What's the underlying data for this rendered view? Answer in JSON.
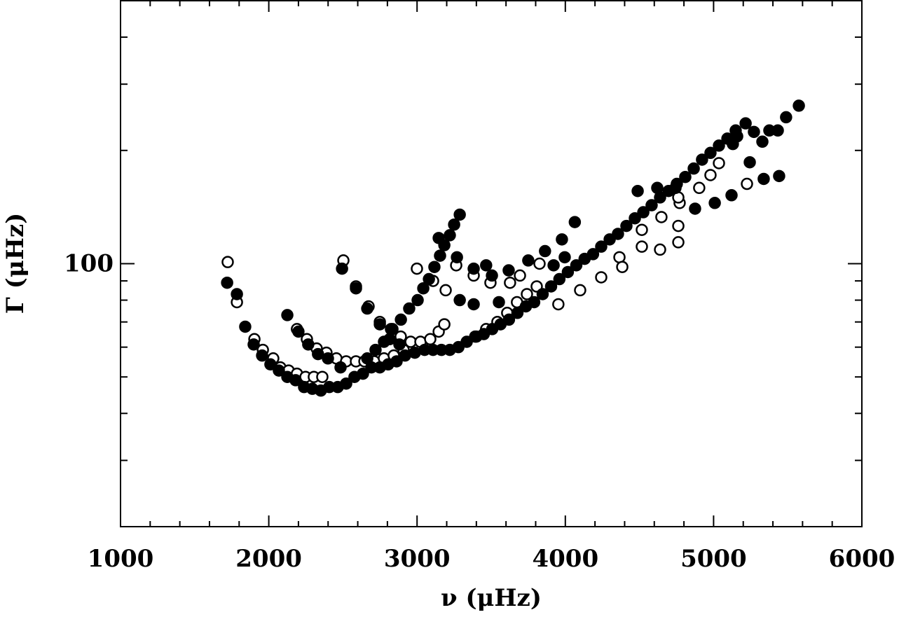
{
  "chart_data": {
    "type": "scatter",
    "x_label": "ν (μHz)",
    "y_label": "Γ (μHz)",
    "xlim": [
      1000,
      6000
    ],
    "xticks": [
      1000,
      2000,
      3000,
      4000,
      5000,
      6000
    ],
    "xminorticks": [
      1200,
      1400,
      1600,
      1800,
      2200,
      2400,
      2600,
      2800,
      3200,
      3400,
      3600,
      3800,
      4200,
      4400,
      4600,
      4800,
      5200,
      5400,
      5600,
      5800
    ],
    "ylim": [
      20,
      500
    ],
    "yscale": "log",
    "yticks": [
      100
    ],
    "yminorticks": [
      20,
      30,
      40,
      50,
      60,
      70,
      80,
      90,
      200,
      300,
      400
    ],
    "series": [
      {
        "marker": "open",
        "color": "#000000",
        "fill": "#ffffff",
        "x": [
          1723,
          1785,
          1903,
          1960,
          2030,
          2078,
          2134,
          2190,
          2248,
          2304,
          2361,
          2190,
          2257,
          2323,
          2389,
          2456,
          2522,
          2588,
          2645,
          2711,
          2777,
          2843,
          2909,
          2503,
          2588,
          2673,
          2749,
          2824,
          2890,
          2957,
          3023,
          3089,
          3146,
          3184,
          2999,
          3108,
          3193,
          3264,
          3382,
          3495,
          3400,
          3466,
          3542,
          3608,
          3674,
          3741,
          3807,
          3627,
          3694,
          3826,
          3953,
          4100,
          4242,
          4365,
          4384,
          4516,
          4639,
          4762,
          4762,
          4648,
          4771,
          4903,
          4979,
          5036,
          5225,
          4516,
          4762
        ],
        "values": [
          101,
          79,
          63,
          59,
          56,
          53,
          52,
          51,
          50,
          50,
          50,
          67,
          63,
          59.5,
          58,
          56,
          55,
          55,
          55,
          55,
          56,
          57,
          59,
          102,
          87,
          77,
          70,
          67,
          64,
          62,
          62,
          63,
          66,
          69,
          97,
          90,
          85,
          99,
          93,
          89,
          64,
          67,
          70,
          74,
          79,
          83,
          87,
          89,
          93,
          100,
          78,
          85,
          92,
          104,
          98,
          111,
          109,
          114,
          126,
          133,
          145,
          159,
          172,
          185,
          163,
          123,
          150
        ]
      },
      {
        "marker": "filled",
        "color": "#000000",
        "fill": "#000000",
        "x": [
          1719,
          1785,
          1841,
          1898,
          1955,
          2011,
          2068,
          2125,
          2181,
          2238,
          2294,
          2351,
          2408,
          2465,
          2522,
          2578,
          2635,
          2692,
          2749,
          2805,
          2862,
          2919,
          2985,
          3051,
          3108,
          3164,
          3221,
          3279,
          3335,
          3392,
          3450,
          3507,
          3563,
          3620,
          3677,
          3734,
          3790,
          3847,
          3904,
          3960,
          4017,
          4074,
          4130,
          4187,
          4242,
          4299,
          4355,
          4412,
          4469,
          4526,
          4582,
          4639,
          4696,
          4752,
          4809,
          4866,
          4922,
          4979,
          5036,
          5093,
          5149,
          5216,
          5159,
          5272,
          5329,
          5376,
          5433,
          5489,
          5575,
          2125,
          2200,
          2266,
          2332,
          2399,
          2484,
          2494,
          2588,
          2664,
          2749,
          2815,
          2881,
          2664,
          2720,
          2777,
          2834,
          2891,
          2947,
          3004,
          3042,
          3080,
          3117,
          3155,
          3184,
          3221,
          3250,
          3288,
          3146,
          3269,
          3288,
          3382,
          3382,
          3466,
          3505,
          3552,
          3618,
          3750,
          3863,
          3977,
          4064,
          3921,
          3996,
          4488,
          4620,
          4743,
          4875,
          5008,
          5121,
          5338,
          5442,
          5244,
          5130
        ],
        "values": [
          89,
          83,
          68,
          61,
          57,
          54,
          52,
          50,
          49,
          47,
          46.5,
          46,
          47,
          47,
          48,
          50,
          51,
          53,
          53,
          54,
          55,
          57,
          58,
          59,
          59,
          59,
          59,
          60,
          62,
          64,
          65,
          67,
          69,
          71,
          74,
          77,
          79,
          83,
          87,
          91,
          95,
          99,
          103,
          106,
          111,
          116,
          120,
          126,
          132,
          137,
          143,
          150,
          156,
          163,
          170,
          179,
          189,
          197,
          206,
          215,
          226,
          236,
          218,
          224,
          211,
          226,
          226,
          245,
          263,
          73,
          66,
          61,
          57.5,
          56,
          53,
          97,
          86,
          76,
          69,
          63,
          61,
          56,
          59,
          62,
          67,
          71,
          76,
          80,
          86,
          91,
          98,
          105,
          112,
          119,
          127,
          135,
          117,
          104,
          80,
          97,
          78,
          99,
          93,
          79,
          96,
          102,
          108,
          116,
          129,
          99,
          104,
          156,
          159,
          159,
          140,
          145,
          152,
          168,
          171,
          186,
          208
        ]
      }
    ]
  }
}
